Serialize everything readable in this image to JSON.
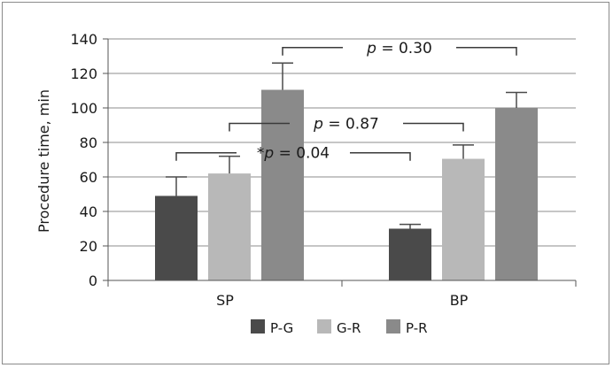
{
  "chart_data": {
    "type": "bar",
    "ylabel": "Procedure time, min",
    "ylim": [
      0,
      140
    ],
    "yticks": [
      0,
      20,
      40,
      60,
      80,
      100,
      120,
      140
    ],
    "categories": [
      "SP",
      "BP"
    ],
    "grid": true,
    "legend_position": "bottom",
    "series": [
      {
        "name": "P-G",
        "color": "#4a4a4a",
        "values": [
          49,
          30
        ],
        "errors": [
          11,
          2.5
        ]
      },
      {
        "name": "G-R",
        "color": "#b8b8b8",
        "values": [
          62,
          70.5
        ],
        "errors": [
          10,
          8
        ]
      },
      {
        "name": "P-R",
        "color": "#8a8a8a",
        "values": [
          110.5,
          100
        ],
        "errors": [
          15.5,
          9
        ]
      }
    ],
    "annotations": [
      {
        "prefix": "",
        "label": "p",
        "text": " = 0.30",
        "from": [
          "SP",
          "P-R"
        ],
        "to": [
          "BP",
          "P-R"
        ],
        "y": 135
      },
      {
        "prefix": "",
        "label": "p",
        "text": " = 0.87",
        "from": [
          "SP",
          "G-R"
        ],
        "to": [
          "BP",
          "G-R"
        ],
        "y": 91
      },
      {
        "prefix": "*",
        "label": "p",
        "text": " = 0.04",
        "from": [
          "SP",
          "P-G"
        ],
        "to": [
          "BP",
          "P-G"
        ],
        "y": 74
      }
    ]
  }
}
